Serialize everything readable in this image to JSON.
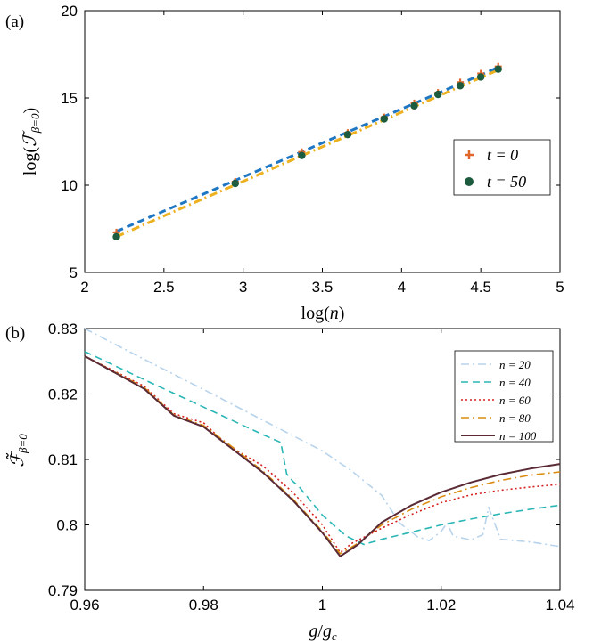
{
  "chart_data": [
    {
      "panel_label": "(a)",
      "type": "scatter",
      "xlabel": "log(n)",
      "ylabel": "log(F_{β=0})",
      "xlim": [
        2,
        5
      ],
      "ylim": [
        5,
        20
      ],
      "xticks": [
        "2",
        "2.5",
        "3",
        "3.5",
        "4",
        "4.5",
        "5"
      ],
      "yticks": [
        "5",
        "10",
        "15",
        "20"
      ],
      "grid": false,
      "legend_placement": "right",
      "series": [
        {
          "name": "t = 0",
          "marker": "plus",
          "color": "#e0672b",
          "x": [
            2.2,
            2.95,
            3.37,
            3.66,
            3.89,
            4.08,
            4.23,
            4.37,
            4.5,
            4.61
          ],
          "y": [
            7.3,
            10.2,
            11.9,
            13.0,
            13.9,
            14.7,
            15.3,
            15.9,
            16.4,
            16.8
          ]
        },
        {
          "name": "t = 50",
          "marker": "dot",
          "color": "#1c5b3e",
          "x": [
            2.2,
            2.95,
            3.37,
            3.66,
            3.89,
            4.08,
            4.23,
            4.37,
            4.5,
            4.61
          ],
          "y": [
            7.05,
            10.1,
            11.7,
            12.9,
            13.8,
            14.55,
            15.2,
            15.7,
            16.2,
            16.65
          ]
        }
      ],
      "fits": [
        {
          "style": "dashed",
          "color": "#1f77c4",
          "x": [
            2.2,
            4.61
          ],
          "y": [
            7.35,
            16.75
          ]
        },
        {
          "style": "dashdot",
          "color": "#edb120",
          "x": [
            2.2,
            4.61
          ],
          "y": [
            7.05,
            16.6
          ]
        }
      ]
    },
    {
      "panel_label": "(b)",
      "type": "line",
      "xlabel": "g/g_c",
      "ylabel": "F̃_{β=0}",
      "xlim": [
        0.96,
        1.04
      ],
      "ylim": [
        0.79,
        0.83
      ],
      "xticks": [
        "0.96",
        "0.98",
        "1",
        "1.02",
        "1.04"
      ],
      "yticks": [
        "0.79",
        "0.8",
        "0.81",
        "0.82",
        "0.83"
      ],
      "grid": false,
      "legend_placement": "top-right",
      "series": [
        {
          "name": "n = 20",
          "style": "dashdot",
          "color": "#b8d3ec",
          "x": [
            0.96,
            0.97,
            0.98,
            0.99,
            1.0,
            1.005,
            1.01,
            1.013,
            1.016,
            1.018,
            1.02,
            1.021,
            1.022,
            1.025,
            1.027,
            1.028,
            1.03,
            1.035,
            1.04
          ],
          "y": [
            0.83,
            0.8253,
            0.8207,
            0.816,
            0.8113,
            0.8082,
            0.8045,
            0.8003,
            0.7982,
            0.7976,
            0.799,
            0.8003,
            0.7983,
            0.7977,
            0.7985,
            0.8027,
            0.7978,
            0.7974,
            0.7967
          ]
        },
        {
          "name": "n = 40",
          "style": "dashed",
          "color": "#2ab6b6",
          "x": [
            0.96,
            0.97,
            0.98,
            0.99,
            0.993,
            0.994,
            0.995,
            0.996,
            1.0,
            1.004,
            1.007,
            1.01,
            1.015,
            1.02,
            1.025,
            1.03,
            1.035,
            1.04
          ],
          "y": [
            0.8265,
            0.8222,
            0.818,
            0.8138,
            0.8126,
            0.8078,
            0.8067,
            0.8059,
            0.8015,
            0.7983,
            0.797,
            0.7978,
            0.7989,
            0.8,
            0.8009,
            0.8017,
            0.8024,
            0.803
          ]
        },
        {
          "name": "n = 60",
          "style": "dotted",
          "color": "#d62020",
          "x": [
            0.96,
            0.97,
            0.975,
            0.98,
            0.984,
            0.99,
            0.995,
            1.0,
            1.003,
            1.005,
            1.01,
            1.015,
            1.02,
            1.025,
            1.03,
            1.035,
            1.04
          ],
          "y": [
            0.8258,
            0.8212,
            0.817,
            0.8156,
            0.8122,
            0.809,
            0.805,
            0.8,
            0.7958,
            0.7972,
            0.7995,
            0.8016,
            0.8034,
            0.8046,
            0.8053,
            0.8058,
            0.8062
          ]
        },
        {
          "name": "n = 80",
          "style": "dashdot",
          "color": "#d98c10",
          "x": [
            0.96,
            0.97,
            0.975,
            0.98,
            0.985,
            0.99,
            0.995,
            1.0,
            1.003,
            1.006,
            1.01,
            1.015,
            1.02,
            1.025,
            1.03,
            1.035,
            1.04
          ],
          "y": [
            0.8258,
            0.821,
            0.8168,
            0.8152,
            0.8118,
            0.8082,
            0.804,
            0.799,
            0.7956,
            0.7972,
            0.8,
            0.8024,
            0.8043,
            0.8057,
            0.8068,
            0.8076,
            0.8081
          ]
        },
        {
          "name": "n = 100",
          "style": "solid",
          "color": "#5a2a35",
          "x": [
            0.96,
            0.97,
            0.975,
            0.98,
            0.985,
            0.99,
            0.995,
            1.0,
            1.003,
            1.006,
            1.01,
            1.015,
            1.02,
            1.025,
            1.03,
            1.035,
            1.04
          ],
          "y": [
            0.8258,
            0.8208,
            0.8167,
            0.815,
            0.8115,
            0.808,
            0.8038,
            0.7988,
            0.7952,
            0.797,
            0.8004,
            0.803,
            0.805,
            0.8065,
            0.8077,
            0.8086,
            0.8093
          ]
        }
      ]
    }
  ]
}
